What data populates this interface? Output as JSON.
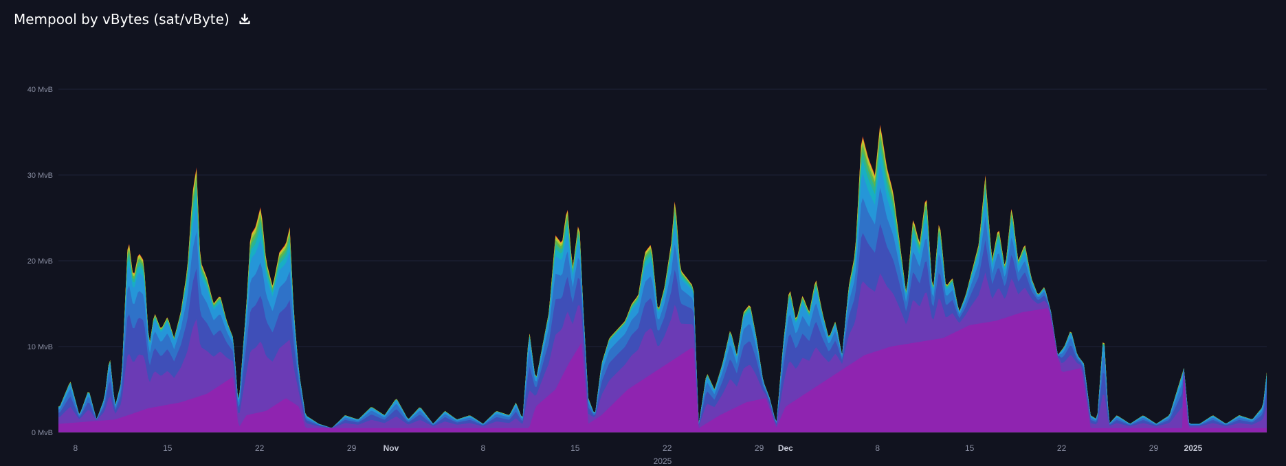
{
  "header": {
    "title": "Mempool by vBytes (sat/vByte)",
    "download_icon": "download-icon"
  },
  "chart_data": {
    "type": "area",
    "stacked": true,
    "title": "Mempool by vBytes (sat/vByte)",
    "xlabel": "2025",
    "ylabel": "",
    "y_unit": "MvB",
    "ylim": [
      0,
      40
    ],
    "grid": true,
    "y_ticks": [
      "0 MvB",
      "10 MvB",
      "20 MvB",
      "30 MvB",
      "40 MvB"
    ],
    "x_ticks": [
      {
        "label": "8",
        "day": 8,
        "major": false
      },
      {
        "label": "15",
        "day": 15,
        "major": false
      },
      {
        "label": "22",
        "day": 22,
        "major": false
      },
      {
        "label": "29",
        "day": 29,
        "major": false
      },
      {
        "label": "Nov",
        "day": 32,
        "major": true
      },
      {
        "label": "8",
        "day": 39,
        "major": false
      },
      {
        "label": "15",
        "day": 46,
        "major": false
      },
      {
        "label": "22",
        "day": 53,
        "major": false
      },
      {
        "label": "29",
        "day": 60,
        "major": false
      },
      {
        "label": "Dec",
        "day": 62,
        "major": true
      },
      {
        "label": "8",
        "day": 69,
        "major": false
      },
      {
        "label": "15",
        "day": 76,
        "major": false
      },
      {
        "label": "22",
        "day": 83,
        "major": false
      },
      {
        "label": "29",
        "day": 90,
        "major": false
      },
      {
        "label": "2025",
        "day": 93,
        "major": true
      }
    ],
    "x_range_days": [
      6.7,
      98.6
    ],
    "series_colors": [
      "#8f24b0",
      "#6b3bb5",
      "#3f4fb8",
      "#2f72c8",
      "#2596d8",
      "#18aec4",
      "#2cb48f",
      "#5db54c",
      "#a7c636",
      "#e0c62c",
      "#e8741f",
      "#c8262c"
    ],
    "total_mvb": [
      {
        "day": 6.8,
        "v": 3
      },
      {
        "day": 7.6,
        "v": 6
      },
      {
        "day": 8.3,
        "v": 2
      },
      {
        "day": 9,
        "v": 5
      },
      {
        "day": 9.6,
        "v": 1.5
      },
      {
        "day": 10.2,
        "v": 4
      },
      {
        "day": 10.6,
        "v": 9
      },
      {
        "day": 11,
        "v": 3
      },
      {
        "day": 11.5,
        "v": 6
      },
      {
        "day": 12,
        "v": 23
      },
      {
        "day": 12.4,
        "v": 18
      },
      {
        "day": 12.8,
        "v": 21
      },
      {
        "day": 13.2,
        "v": 20
      },
      {
        "day": 13.6,
        "v": 10
      },
      {
        "day": 14,
        "v": 14
      },
      {
        "day": 14.5,
        "v": 12
      },
      {
        "day": 15,
        "v": 13.5
      },
      {
        "day": 15.5,
        "v": 11
      },
      {
        "day": 16,
        "v": 14
      },
      {
        "day": 16.5,
        "v": 19
      },
      {
        "day": 16.9,
        "v": 28
      },
      {
        "day": 17.2,
        "v": 31
      },
      {
        "day": 17.5,
        "v": 20
      },
      {
        "day": 18,
        "v": 18
      },
      {
        "day": 18.5,
        "v": 15
      },
      {
        "day": 19,
        "v": 16
      },
      {
        "day": 19.5,
        "v": 13
      },
      {
        "day": 20,
        "v": 11
      },
      {
        "day": 20.4,
        "v": 3
      },
      {
        "day": 21,
        "v": 15
      },
      {
        "day": 21.3,
        "v": 23
      },
      {
        "day": 21.7,
        "v": 24
      },
      {
        "day": 22.1,
        "v": 26.5
      },
      {
        "day": 22.5,
        "v": 20
      },
      {
        "day": 23,
        "v": 17
      },
      {
        "day": 23.5,
        "v": 21
      },
      {
        "day": 24,
        "v": 22
      },
      {
        "day": 24.3,
        "v": 24
      },
      {
        "day": 24.6,
        "v": 14
      },
      {
        "day": 25,
        "v": 7
      },
      {
        "day": 25.5,
        "v": 2
      },
      {
        "day": 26.5,
        "v": 1
      },
      {
        "day": 27.5,
        "v": 0.5
      },
      {
        "day": 28.5,
        "v": 2
      },
      {
        "day": 29.5,
        "v": 1.5
      },
      {
        "day": 30.5,
        "v": 3
      },
      {
        "day": 31.5,
        "v": 2
      },
      {
        "day": 32.4,
        "v": 4
      },
      {
        "day": 33.3,
        "v": 1.5
      },
      {
        "day": 34.2,
        "v": 3
      },
      {
        "day": 35.2,
        "v": 1
      },
      {
        "day": 36.1,
        "v": 2.5
      },
      {
        "day": 37,
        "v": 1.5
      },
      {
        "day": 38,
        "v": 2
      },
      {
        "day": 39,
        "v": 1
      },
      {
        "day": 40,
        "v": 2.5
      },
      {
        "day": 41,
        "v": 2
      },
      {
        "day": 41.5,
        "v": 3.5
      },
      {
        "day": 42,
        "v": 1.5
      },
      {
        "day": 42.5,
        "v": 12
      },
      {
        "day": 43,
        "v": 6
      },
      {
        "day": 43.5,
        "v": 10
      },
      {
        "day": 44,
        "v": 14
      },
      {
        "day": 44.5,
        "v": 23
      },
      {
        "day": 45,
        "v": 22
      },
      {
        "day": 45.4,
        "v": 26.5
      },
      {
        "day": 45.8,
        "v": 19
      },
      {
        "day": 46.3,
        "v": 25
      },
      {
        "day": 46.6,
        "v": 15
      },
      {
        "day": 47,
        "v": 4
      },
      {
        "day": 47.5,
        "v": 2
      },
      {
        "day": 48,
        "v": 8
      },
      {
        "day": 48.6,
        "v": 11
      },
      {
        "day": 49.2,
        "v": 12
      },
      {
        "day": 49.8,
        "v": 13
      },
      {
        "day": 50.3,
        "v": 15
      },
      {
        "day": 50.8,
        "v": 16
      },
      {
        "day": 51.3,
        "v": 21
      },
      {
        "day": 51.8,
        "v": 22
      },
      {
        "day": 52.3,
        "v": 14
      },
      {
        "day": 52.8,
        "v": 17
      },
      {
        "day": 53.3,
        "v": 22
      },
      {
        "day": 53.6,
        "v": 27.5
      },
      {
        "day": 54,
        "v": 19
      },
      {
        "day": 54.5,
        "v": 18
      },
      {
        "day": 55,
        "v": 17
      },
      {
        "day": 55.4,
        "v": 1
      },
      {
        "day": 56,
        "v": 7
      },
      {
        "day": 56.6,
        "v": 5
      },
      {
        "day": 57.2,
        "v": 8
      },
      {
        "day": 57.8,
        "v": 12
      },
      {
        "day": 58.3,
        "v": 9
      },
      {
        "day": 58.8,
        "v": 14
      },
      {
        "day": 59.3,
        "v": 15
      },
      {
        "day": 59.8,
        "v": 11
      },
      {
        "day": 60.3,
        "v": 6
      },
      {
        "day": 60.8,
        "v": 4
      },
      {
        "day": 61.3,
        "v": 1
      },
      {
        "day": 61.8,
        "v": 10
      },
      {
        "day": 62.3,
        "v": 17
      },
      {
        "day": 62.8,
        "v": 13
      },
      {
        "day": 63.3,
        "v": 16
      },
      {
        "day": 63.8,
        "v": 14
      },
      {
        "day": 64.3,
        "v": 18
      },
      {
        "day": 64.8,
        "v": 14
      },
      {
        "day": 65.3,
        "v": 11
      },
      {
        "day": 65.8,
        "v": 13
      },
      {
        "day": 66.3,
        "v": 9
      },
      {
        "day": 66.8,
        "v": 17
      },
      {
        "day": 67.3,
        "v": 21
      },
      {
        "day": 67.8,
        "v": 35
      },
      {
        "day": 68.3,
        "v": 32
      },
      {
        "day": 68.8,
        "v": 30
      },
      {
        "day": 69.2,
        "v": 36
      },
      {
        "day": 69.7,
        "v": 31
      },
      {
        "day": 70.2,
        "v": 28
      },
      {
        "day": 70.7,
        "v": 22
      },
      {
        "day": 71.2,
        "v": 16
      },
      {
        "day": 71.7,
        "v": 25
      },
      {
        "day": 72.2,
        "v": 22
      },
      {
        "day": 72.7,
        "v": 28
      },
      {
        "day": 73.2,
        "v": 16
      },
      {
        "day": 73.7,
        "v": 25
      },
      {
        "day": 74.2,
        "v": 17
      },
      {
        "day": 74.7,
        "v": 18
      },
      {
        "day": 75.2,
        "v": 14
      },
      {
        "day": 75.7,
        "v": 16
      },
      {
        "day": 76.2,
        "v": 19
      },
      {
        "day": 76.7,
        "v": 22
      },
      {
        "day": 77.2,
        "v": 30
      },
      {
        "day": 77.7,
        "v": 20
      },
      {
        "day": 78.2,
        "v": 24
      },
      {
        "day": 78.7,
        "v": 19
      },
      {
        "day": 79.2,
        "v": 26.5
      },
      {
        "day": 79.7,
        "v": 20
      },
      {
        "day": 80.2,
        "v": 22
      },
      {
        "day": 80.7,
        "v": 18
      },
      {
        "day": 81.2,
        "v": 16
      },
      {
        "day": 81.7,
        "v": 17
      },
      {
        "day": 82.2,
        "v": 14
      },
      {
        "day": 82.7,
        "v": 9
      },
      {
        "day": 83.2,
        "v": 10
      },
      {
        "day": 83.7,
        "v": 12
      },
      {
        "day": 84.2,
        "v": 9
      },
      {
        "day": 84.7,
        "v": 8
      },
      {
        "day": 85.2,
        "v": 2
      },
      {
        "day": 85.7,
        "v": 1.5
      },
      {
        "day": 86.2,
        "v": 12
      },
      {
        "day": 86.6,
        "v": 1
      },
      {
        "day": 87.2,
        "v": 2
      },
      {
        "day": 88.2,
        "v": 1
      },
      {
        "day": 89.2,
        "v": 2
      },
      {
        "day": 90.2,
        "v": 1
      },
      {
        "day": 91.2,
        "v": 2
      },
      {
        "day": 92.3,
        "v": 7.5
      },
      {
        "day": 92.7,
        "v": 1
      },
      {
        "day": 93.5,
        "v": 1
      },
      {
        "day": 94.5,
        "v": 2
      },
      {
        "day": 95.5,
        "v": 1
      },
      {
        "day": 96.5,
        "v": 2
      },
      {
        "day": 97.5,
        "v": 1.5
      },
      {
        "day": 98.3,
        "v": 3
      },
      {
        "day": 98.6,
        "v": 7
      }
    ],
    "base_mvb": [
      {
        "day": 6.8,
        "v": 1
      },
      {
        "day": 11,
        "v": 1.5
      },
      {
        "day": 12,
        "v": 2
      },
      {
        "day": 13.5,
        "v": 2.8
      },
      {
        "day": 16,
        "v": 3.5
      },
      {
        "day": 18,
        "v": 4.5
      },
      {
        "day": 20,
        "v": 6.5
      },
      {
        "day": 20.4,
        "v": 0.5
      },
      {
        "day": 21,
        "v": 2
      },
      {
        "day": 22.5,
        "v": 2.5
      },
      {
        "day": 24,
        "v": 4
      },
      {
        "day": 25,
        "v": 3
      },
      {
        "day": 25.5,
        "v": 0.5
      },
      {
        "day": 42.5,
        "v": 0.5
      },
      {
        "day": 43,
        "v": 3
      },
      {
        "day": 44.5,
        "v": 5
      },
      {
        "day": 45.5,
        "v": 8
      },
      {
        "day": 46.5,
        "v": 10.5
      },
      {
        "day": 47,
        "v": 1
      },
      {
        "day": 48,
        "v": 2
      },
      {
        "day": 50,
        "v": 5
      },
      {
        "day": 52,
        "v": 7
      },
      {
        "day": 54,
        "v": 9
      },
      {
        "day": 55,
        "v": 10
      },
      {
        "day": 55.4,
        "v": 0.5
      },
      {
        "day": 57,
        "v": 2
      },
      {
        "day": 59,
        "v": 3.5
      },
      {
        "day": 60.5,
        "v": 4
      },
      {
        "day": 61.3,
        "v": 0.5
      },
      {
        "day": 62,
        "v": 3
      },
      {
        "day": 64,
        "v": 5
      },
      {
        "day": 66,
        "v": 7
      },
      {
        "day": 68,
        "v": 9
      },
      {
        "day": 70,
        "v": 10
      },
      {
        "day": 72,
        "v": 10.5
      },
      {
        "day": 74,
        "v": 11
      },
      {
        "day": 76,
        "v": 12.5
      },
      {
        "day": 78,
        "v": 13
      },
      {
        "day": 80,
        "v": 14
      },
      {
        "day": 82,
        "v": 14.5
      },
      {
        "day": 83,
        "v": 7
      },
      {
        "day": 84.5,
        "v": 7.5
      },
      {
        "day": 85.2,
        "v": 0.5
      },
      {
        "day": 92.2,
        "v": 0.5
      },
      {
        "day": 92.3,
        "v": 7
      },
      {
        "day": 92.6,
        "v": 0.5
      },
      {
        "day": 98.6,
        "v": 0.5
      }
    ]
  }
}
